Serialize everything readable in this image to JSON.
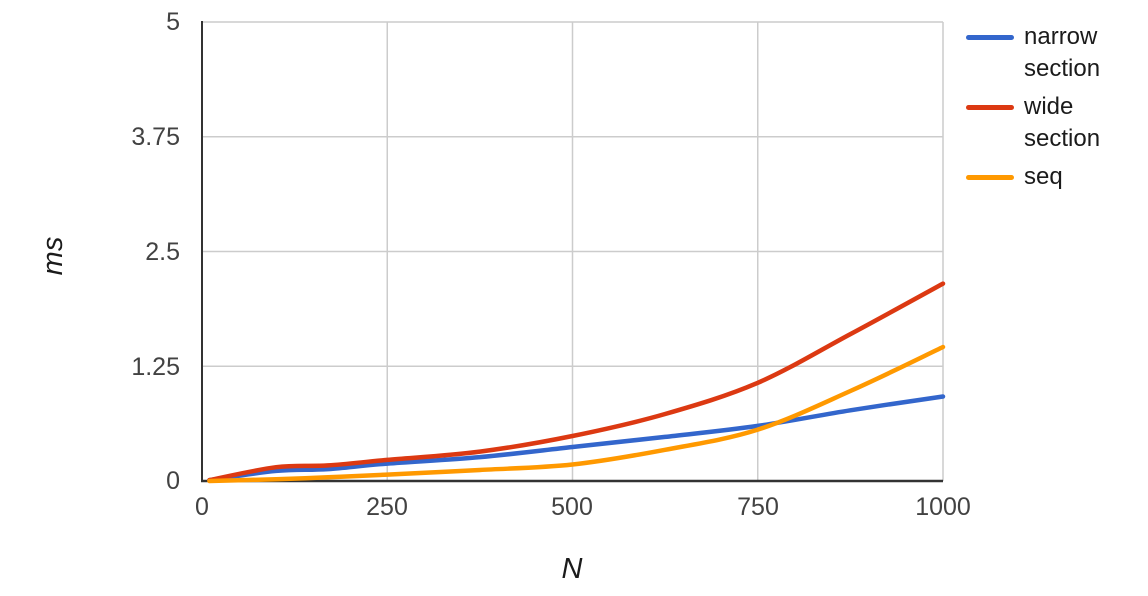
{
  "chart_data": {
    "type": "line",
    "title": "",
    "xlabel": "N",
    "ylabel": "ms",
    "xlim": [
      0,
      1000
    ],
    "ylim": [
      0,
      5
    ],
    "grid": true,
    "legend_position": "right",
    "curve": "smooth",
    "xticks": [
      "0",
      "250",
      "500",
      "750",
      "1000"
    ],
    "yticks": [
      "0",
      "1.25",
      "2.5",
      "3.75",
      "5"
    ],
    "x": [
      10,
      100,
      170,
      250,
      375,
      500,
      625,
      750,
      875,
      1000
    ],
    "series": [
      {
        "name": "narrow section",
        "color": "#3366CC",
        "values": [
          0.01,
          0.11,
          0.13,
          0.19,
          0.26,
          0.37,
          0.48,
          0.6,
          0.77,
          0.92
        ]
      },
      {
        "name": "wide section",
        "color": "#DC3912",
        "values": [
          0.01,
          0.15,
          0.17,
          0.23,
          0.32,
          0.49,
          0.73,
          1.07,
          1.6,
          2.15
        ]
      },
      {
        "name": "seq",
        "color": "#FF9900",
        "values": [
          0.0,
          0.02,
          0.04,
          0.07,
          0.12,
          0.18,
          0.34,
          0.56,
          0.98,
          1.46
        ]
      }
    ],
    "colors": {
      "grid": "#cccccc",
      "axis": "#333333",
      "tick_text": "#424242",
      "label_text": "#1b1b1b",
      "background": "#ffffff"
    }
  }
}
